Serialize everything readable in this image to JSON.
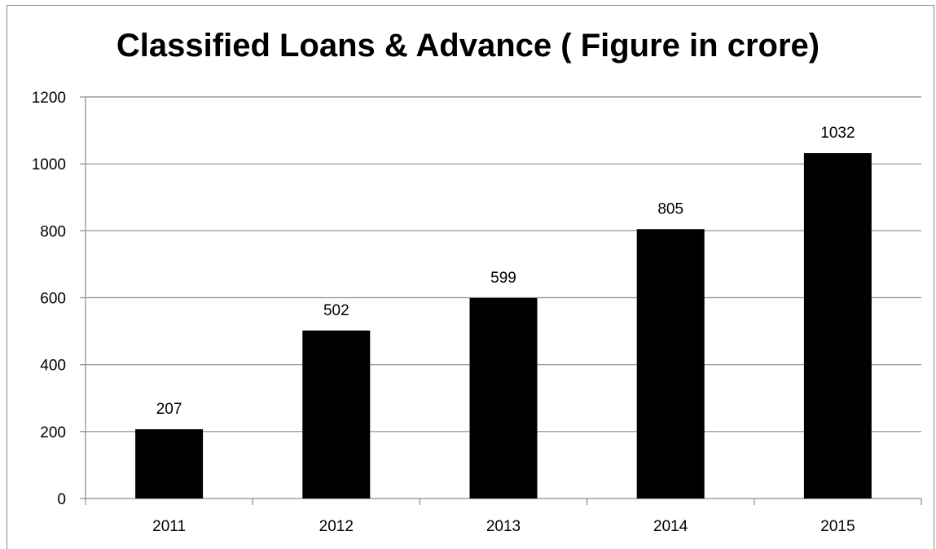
{
  "chart_data": {
    "type": "bar",
    "title": "Classified Loans & Advance ( Figure in crore)",
    "categories": [
      "2011",
      "2012",
      "2013",
      "2014",
      "2015"
    ],
    "values": [
      207,
      502,
      599,
      805,
      1032
    ],
    "data_labels": [
      "207",
      "502",
      "599",
      "805",
      "1032"
    ],
    "y_ticks": [
      "0",
      "200",
      "400",
      "600",
      "800",
      "1000",
      "1200"
    ],
    "ylim": [
      0,
      1200
    ],
    "xlabel": "",
    "ylabel": "",
    "grid": true,
    "legend": "none",
    "bar_color": "#000000",
    "grid_color": "#8c8c8c"
  }
}
